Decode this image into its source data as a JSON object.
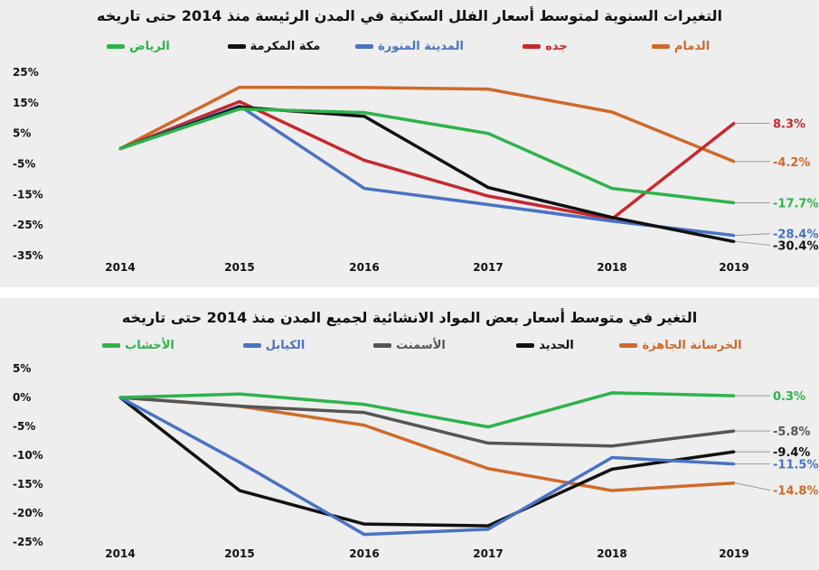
{
  "chart_data": [
    {
      "type": "line",
      "title": "التغيرات السنوية لمتوسط أسعار الفلل السكنية في المدن الرئيسة منذ 2014 حتى تاريخه",
      "categories": [
        "2014",
        "2015",
        "2016",
        "2017",
        "2018",
        "2019"
      ],
      "yticks": [
        "25%",
        "15%",
        "5%",
        "-5%",
        "-15%",
        "-25%",
        "-35%"
      ],
      "ylim": [
        -35,
        25
      ],
      "grid": false,
      "legend": "top",
      "series": [
        {
          "name": "الدمام",
          "color": "#d0692a",
          "values": [
            0,
            20.1,
            20,
            19.5,
            12,
            -4.2
          ],
          "end_label": "-4.2%"
        },
        {
          "name": "جده",
          "color": "#c8282e",
          "values": [
            0,
            15.4,
            -3.8,
            -15.5,
            -23,
            8.3
          ],
          "end_label": "8.3%"
        },
        {
          "name": "المدينة المنورة",
          "color": "#4a72c4",
          "values": [
            0,
            14,
            -13,
            -18.3,
            -23.7,
            -28.4
          ],
          "end_label": "-28.4%"
        },
        {
          "name": "مكة المكرمة",
          "color": "#111111",
          "values": [
            0,
            13.6,
            10.6,
            -12.7,
            -22.5,
            -30.4
          ],
          "end_label": "-30.4%"
        },
        {
          "name": "الرياض",
          "color": "#2db34a",
          "values": [
            0,
            13,
            11.8,
            5,
            -13,
            -17.7
          ],
          "end_label": "-17.7%"
        }
      ]
    },
    {
      "type": "line",
      "title": "التغير في متوسط أسعار بعض المواد الانشائية لجميع المدن منذ 2014 حتى تاريخه",
      "categories": [
        "2014",
        "2015",
        "2016",
        "2017",
        "2018",
        "2019"
      ],
      "yticks": [
        "5%",
        "0%",
        "-5%",
        "-10%",
        "-15%",
        "-20%",
        "-25%"
      ],
      "ylim": [
        -25,
        5
      ],
      "grid": false,
      "legend": "top",
      "series": [
        {
          "name": "الخرسانة الجاهزة",
          "color": "#d0692a",
          "values": [
            0,
            -1.5,
            -4.8,
            -12.3,
            -16.1,
            -14.8
          ],
          "end_label": "-14.8%"
        },
        {
          "name": "الحديد",
          "color": "#111111",
          "values": [
            0,
            -16.1,
            -21.9,
            -22.2,
            -12.4,
            -9.4
          ],
          "end_label": "-9.4%"
        },
        {
          "name": "الأسمنت",
          "color": "#555555",
          "values": [
            0,
            -1.5,
            -2.6,
            -7.9,
            -8.4,
            -5.8
          ],
          "end_label": "-5.8%"
        },
        {
          "name": "الكيابل",
          "color": "#4a72c4",
          "values": [
            0,
            -11.2,
            -23.7,
            -22.8,
            -10.4,
            -11.5
          ],
          "end_label": "-11.5%"
        },
        {
          "name": "الأخشاب",
          "color": "#2db34a",
          "values": [
            0,
            0.6,
            -1.2,
            -5.1,
            0.8,
            0.3
          ],
          "end_label": "0.3%"
        }
      ]
    }
  ]
}
